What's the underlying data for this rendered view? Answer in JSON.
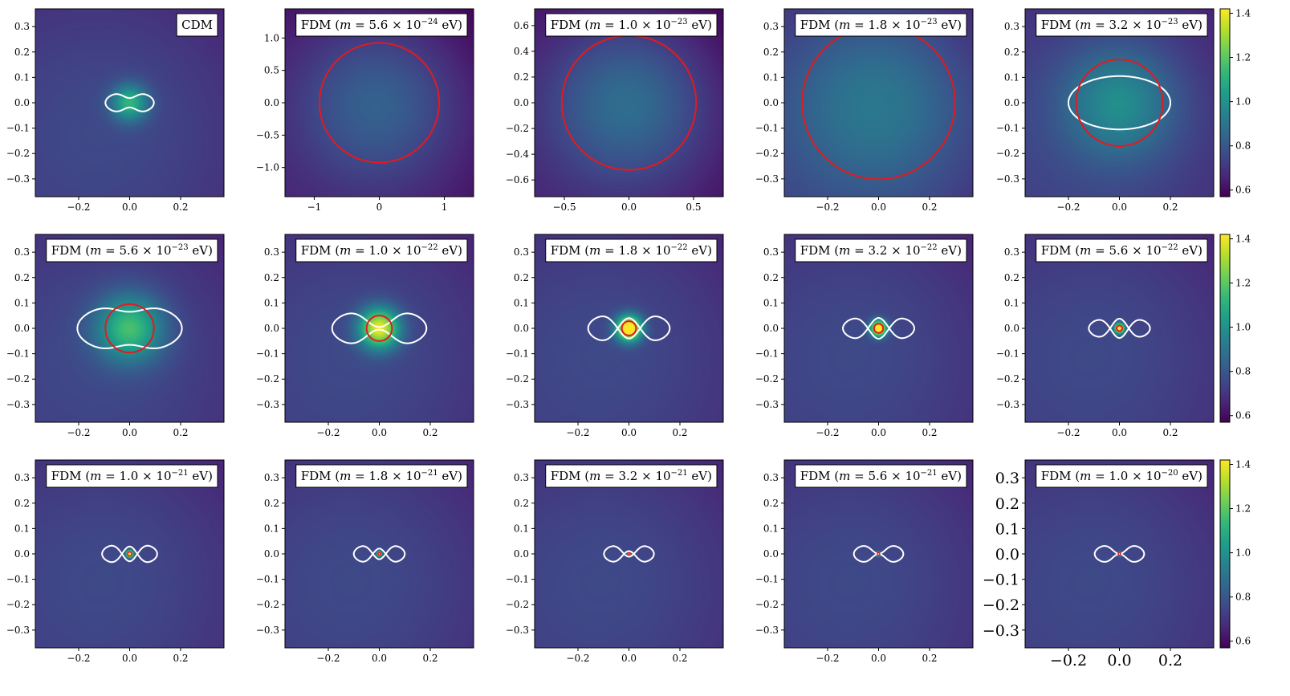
{
  "chart_data": {
    "type": "heatmap",
    "colormap": "viridis",
    "colors": {
      "halo_contour": "#ffffff",
      "core_circle": "#e41a1c",
      "frame": "#000000"
    },
    "colorbar": {
      "range": [
        0.57,
        1.42
      ],
      "ticks": [
        "0.6",
        "0.8",
        "1.0",
        "1.2",
        "1.4"
      ]
    },
    "panels": [
      {
        "label": "CDM",
        "label_parts": [
          "CDM",
          "",
          "",
          ""
        ],
        "lim": 0.37,
        "ticks": [
          "-0.2",
          "0.0",
          "0.2"
        ],
        "yticks": [
          "-0.3",
          "-0.2",
          "-0.1",
          "0.0",
          "0.1",
          "0.2",
          "0.3"
        ],
        "peak": 1.0,
        "peak_sigma": 0.05,
        "background": 0.62,
        "bg_sigma": 0.5,
        "contour": {
          "a": 0.095,
          "b": 0.045,
          "pinch": 0.012
        },
        "core_radius": null
      },
      {
        "label": "FDM (m=5.6×10^-24 eV)",
        "label_parts": [
          "FDM (",
          "5.6",
          "-24",
          " eV)"
        ],
        "lim": 1.45,
        "ticks": [
          "-1",
          "0",
          "1"
        ],
        "yticks": [
          "-1.0",
          "-0.5",
          "0.0",
          "0.5",
          "1.0"
        ],
        "peak": 0.7,
        "peak_sigma": 0.9,
        "background": 0.6,
        "bg_sigma": 1.0,
        "contour": null,
        "core_radius": 0.92
      },
      {
        "label": "FDM (m=1.0×10^-23 eV)",
        "label_parts": [
          "FDM (",
          "1.0",
          "-23",
          " eV)"
        ],
        "lim": 0.73,
        "ticks": [
          "-0.5",
          "0.0",
          "0.5"
        ],
        "yticks": [
          "-0.6",
          "-0.4",
          "-0.2",
          "0.0",
          "0.2",
          "0.4",
          "0.6"
        ],
        "peak": 0.74,
        "peak_sigma": 0.45,
        "background": 0.6,
        "bg_sigma": 0.5,
        "contour": null,
        "core_radius": 0.52
      },
      {
        "label": "FDM (m=1.8×10^-23 eV)",
        "label_parts": [
          "FDM (",
          "1.8",
          "-23",
          " eV)"
        ],
        "lim": 0.37,
        "ticks": [
          "-0.2",
          "0.0",
          "0.2"
        ],
        "yticks": [
          "-0.3",
          "-0.2",
          "-0.1",
          "0.0",
          "0.1",
          "0.2",
          "0.3"
        ],
        "peak": 0.78,
        "peak_sigma": 0.25,
        "background": 0.62,
        "bg_sigma": 0.5,
        "contour": null,
        "core_radius": 0.3
      },
      {
        "label": "FDM (m=3.2×10^-23 eV)",
        "label_parts": [
          "FDM (",
          "3.2",
          "-23",
          " eV)"
        ],
        "lim": 0.37,
        "ticks": [
          "-0.2",
          "0.0",
          "0.2"
        ],
        "yticks": [
          "-0.3",
          "-0.2",
          "-0.1",
          "0.0",
          "0.1",
          "0.2",
          "0.3"
        ],
        "peak": 0.86,
        "peak_sigma": 0.15,
        "background": 0.62,
        "bg_sigma": 0.5,
        "contour": {
          "a": 0.2,
          "b": 0.105,
          "pinch": 0.0
        },
        "core_radius": 0.17
      },
      {
        "label": "FDM (m=5.6×10^-23 eV)",
        "label_parts": [
          "FDM (",
          "5.6",
          "-23",
          " eV)"
        ],
        "lim": 0.37,
        "ticks": [
          "-0.2",
          "0.0",
          "0.2"
        ],
        "yticks": [
          "-0.3",
          "-0.2",
          "-0.1",
          "0.0",
          "0.1",
          "0.2",
          "0.3"
        ],
        "peak": 1.04,
        "peak_sigma": 0.09,
        "background": 0.62,
        "bg_sigma": 0.5,
        "contour": {
          "a": 0.205,
          "b": 0.098,
          "pinch": 0.015
        },
        "core_radius": 0.095
      },
      {
        "label": "FDM (m=1.0×10^-22 eV)",
        "label_parts": [
          "FDM (",
          "1.0",
          "-22",
          " eV)"
        ],
        "lim": 0.37,
        "ticks": [
          "-0.2",
          "0.0",
          "0.2"
        ],
        "yticks": [
          "-0.3",
          "-0.2",
          "-0.1",
          "0.0",
          "0.1",
          "0.2",
          "0.3"
        ],
        "peak": 1.28,
        "peak_sigma": 0.055,
        "background": 0.62,
        "bg_sigma": 0.5,
        "contour": {
          "a": 0.185,
          "b": 0.082,
          "pinch": 0.035
        },
        "core_radius": 0.05
      },
      {
        "label": "FDM (m=1.8×10^-22 eV)",
        "label_parts": [
          "FDM (",
          "1.8",
          "-22",
          " eV)"
        ],
        "lim": 0.37,
        "ticks": [
          "-0.2",
          "0.0",
          "0.2"
        ],
        "yticks": [
          "-0.3",
          "-0.2",
          "-0.1",
          "0.0",
          "0.1",
          "0.2",
          "0.3"
        ],
        "peak": 1.42,
        "peak_sigma": 0.035,
        "background": 0.62,
        "bg_sigma": 0.5,
        "contour": {
          "a": 0.16,
          "b": 0.07,
          "pinch": 0.05
        },
        "core_radius": 0.028
      },
      {
        "label": "FDM (m=3.2×10^-22 eV)",
        "label_parts": [
          "FDM (",
          "3.2",
          "-22",
          " eV)"
        ],
        "lim": 0.37,
        "ticks": [
          "-0.2",
          "0.0",
          "0.2"
        ],
        "yticks": [
          "-0.3",
          "-0.2",
          "-0.1",
          "0.0",
          "0.1",
          "0.2",
          "0.3"
        ],
        "peak": 1.42,
        "peak_sigma": 0.022,
        "background": 0.62,
        "bg_sigma": 0.5,
        "contour": {
          "a": 0.14,
          "b": 0.058,
          "pinch": 0.045
        },
        "core_radius": 0.018
      },
      {
        "label": "FDM (m=5.6×10^-22 eV)",
        "label_parts": [
          "FDM (",
          "5.6",
          "-22",
          " eV)"
        ],
        "lim": 0.37,
        "ticks": [
          "-0.2",
          "0.0",
          "0.2"
        ],
        "yticks": [
          "-0.3",
          "-0.2",
          "-0.1",
          "0.0",
          "0.1",
          "0.2",
          "0.3"
        ],
        "peak": 1.42,
        "peak_sigma": 0.014,
        "background": 0.62,
        "bg_sigma": 0.5,
        "contour": {
          "a": 0.12,
          "b": 0.05,
          "pinch": 0.04
        },
        "core_radius": 0.011
      },
      {
        "label": "FDM (m=1.0×10^-21 eV)",
        "label_parts": [
          "FDM (",
          "1.0",
          "-21",
          " eV)"
        ],
        "lim": 0.37,
        "ticks": [
          "-0.2",
          "0.0",
          "0.2"
        ],
        "yticks": [
          "-0.3",
          "-0.2",
          "-0.1",
          "0.0",
          "0.1",
          "0.2",
          "0.3"
        ],
        "peak": 1.42,
        "peak_sigma": 0.01,
        "background": 0.62,
        "bg_sigma": 0.5,
        "contour": {
          "a": 0.108,
          "b": 0.048,
          "pinch": 0.035
        },
        "core_radius": 0.008
      },
      {
        "label": "FDM (m=1.8×10^-21 eV)",
        "label_parts": [
          "FDM (",
          "1.8",
          "-21",
          " eV)"
        ],
        "lim": 0.37,
        "ticks": [
          "-0.2",
          "0.0",
          "0.2"
        ],
        "yticks": [
          "-0.3",
          "-0.2",
          "-0.1",
          "0.0",
          "0.1",
          "0.2",
          "0.3"
        ],
        "peak": 1.42,
        "peak_sigma": 0.007,
        "background": 0.62,
        "bg_sigma": 0.5,
        "contour": {
          "a": 0.1,
          "b": 0.045,
          "pinch": 0.03
        },
        "core_radius": 0.005
      },
      {
        "label": "FDM (m=3.2×10^-21 eV)",
        "label_parts": [
          "FDM (",
          "3.2",
          "-21",
          " eV)"
        ],
        "lim": 0.37,
        "ticks": [
          "-0.2",
          "0.0",
          "0.2"
        ],
        "yticks": [
          "-0.3",
          "-0.2",
          "-0.1",
          "0.0",
          "0.1",
          "0.2",
          "0.3"
        ],
        "peak": 1.4,
        "peak_sigma": 0.005,
        "background": 0.62,
        "bg_sigma": 0.5,
        "contour": {
          "a": 0.098,
          "b": 0.044,
          "pinch": 0.025
        },
        "core_radius": 0.003
      },
      {
        "label": "FDM (m=5.6×10^-21 eV)",
        "label_parts": [
          "FDM (",
          "5.6",
          "-21",
          " eV)"
        ],
        "lim": 0.37,
        "ticks": [
          "-0.2",
          "0.0",
          "0.2"
        ],
        "yticks": [
          "-0.3",
          "-0.2",
          "-0.1",
          "0.0",
          "0.1",
          "0.2",
          "0.3"
        ],
        "peak": 1.2,
        "peak_sigma": 0.006,
        "background": 0.62,
        "bg_sigma": 0.5,
        "contour": {
          "a": 0.097,
          "b": 0.044,
          "pinch": 0.02
        },
        "core_radius": 0.0025
      },
      {
        "label": "FDM (m=1.0×10^-20 eV)",
        "label_parts": [
          "FDM (",
          "1.0",
          "-20",
          " eV)"
        ],
        "lim": 0.37,
        "ticks": [
          "-0.2",
          "0.0",
          "0.2"
        ],
        "yticks": [
          "-0.3",
          "-0.2",
          "-0.1",
          "0.0",
          "0.1",
          "0.2",
          "0.3"
        ],
        "peak": 1.1,
        "peak_sigma": 0.006,
        "background": 0.62,
        "bg_sigma": 0.5,
        "contour": {
          "a": 0.097,
          "b": 0.044,
          "pinch": 0.02
        },
        "core_radius": 0.0022
      }
    ]
  }
}
